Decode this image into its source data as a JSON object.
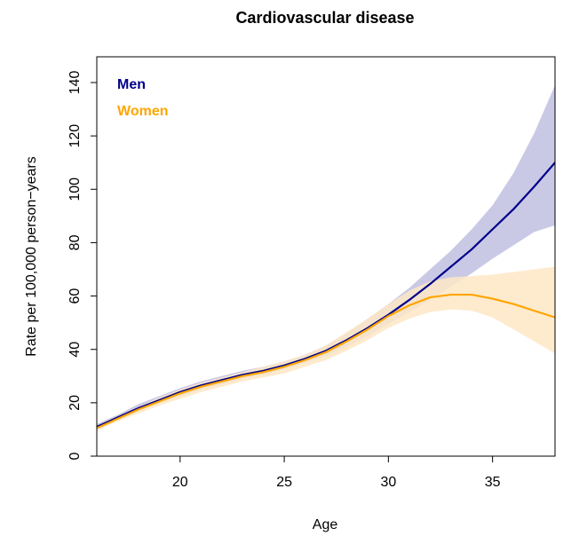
{
  "chart_data": {
    "type": "line",
    "title": "Cardiovascular disease",
    "xlabel": "Age",
    "ylabel": "Rate per 100,000 person−years",
    "xlim": [
      16,
      38
    ],
    "ylim": [
      0,
      140
    ],
    "x_ticks": [
      20,
      25,
      30,
      35
    ],
    "y_ticks": [
      0,
      20,
      40,
      60,
      80,
      100,
      120,
      140
    ],
    "legend_position": "top-left",
    "grid": false,
    "series": [
      {
        "name": "Men",
        "color": "#00008B",
        "band_color": "#C9C9E6",
        "x": [
          16,
          17,
          18,
          19,
          20,
          21,
          22,
          23,
          24,
          25,
          26,
          27,
          28,
          29,
          30,
          31,
          32,
          33,
          34,
          35,
          36,
          37,
          38
        ],
        "y": [
          11,
          14.5,
          18,
          21,
          24,
          26.5,
          28.5,
          30.5,
          32,
          34,
          36.5,
          39.5,
          43.5,
          48,
          53,
          58.5,
          64.5,
          71,
          77.5,
          85,
          92.5,
          101,
          110
        ],
        "lower": [
          10,
          13.5,
          17,
          20,
          22.5,
          25,
          27,
          29,
          30.5,
          32.5,
          35,
          37.5,
          41,
          45,
          49.5,
          54,
          58.5,
          63.5,
          68.5,
          74,
          79,
          84,
          86.5
        ],
        "upper": [
          12,
          15.5,
          19.5,
          22.5,
          25.5,
          28,
          30,
          32,
          33.5,
          35.5,
          38,
          41.5,
          46,
          51.5,
          57,
          63,
          70,
          77,
          85,
          94,
          106,
          121,
          139
        ]
      },
      {
        "name": "Women",
        "color": "#FFA500",
        "band_color": "#FEE7C6",
        "x": [
          16,
          17,
          18,
          19,
          20,
          21,
          22,
          23,
          24,
          25,
          26,
          27,
          28,
          29,
          30,
          31,
          32,
          33,
          34,
          35,
          36,
          37,
          38
        ],
        "y": [
          10.5,
          14,
          17.5,
          20.5,
          23.5,
          26,
          28,
          30,
          31.5,
          33.5,
          36,
          39,
          43,
          47.5,
          52.5,
          56.5,
          59.5,
          60.5,
          60.5,
          59,
          57,
          54.5,
          52
        ],
        "lower": [
          9.5,
          13,
          16,
          19,
          21.5,
          24,
          26,
          28,
          29.5,
          31,
          33.5,
          36,
          39.5,
          43.5,
          48,
          51.5,
          54,
          55,
          54.5,
          52,
          47.5,
          43,
          38.5
        ],
        "upper": [
          11.5,
          15,
          18.5,
          22,
          25,
          27.5,
          29.5,
          31.5,
          33.5,
          35.5,
          38,
          41.5,
          46.5,
          51.5,
          57,
          62,
          65.5,
          67,
          67.5,
          68,
          69,
          70,
          71
        ]
      }
    ]
  }
}
